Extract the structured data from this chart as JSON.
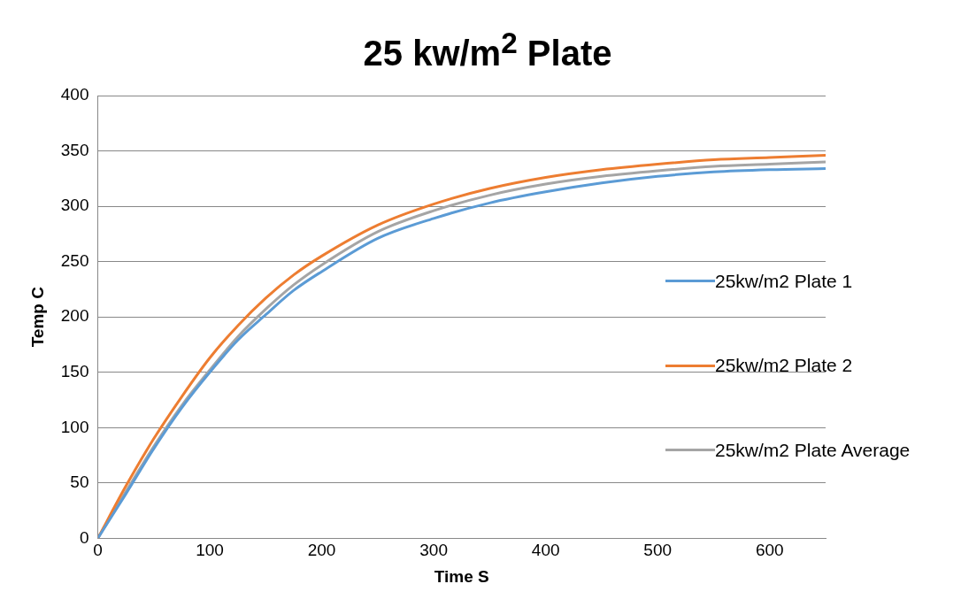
{
  "chart_data": {
    "type": "line",
    "title": "25 kw/m$^{2}$ Plate",
    "xlabel": "Time S",
    "ylabel": "Temp C",
    "xlim": [
      0,
      650
    ],
    "xticks": [
      0,
      100,
      200,
      300,
      400,
      500,
      600
    ],
    "ylim": [
      0,
      400
    ],
    "yticks": [
      0,
      50,
      100,
      150,
      200,
      250,
      300,
      350,
      400
    ],
    "grid": "y",
    "legend": "right",
    "marker": "none",
    "line_style": "solid",
    "x": [
      0,
      25,
      50,
      75,
      100,
      125,
      150,
      175,
      200,
      250,
      300,
      350,
      400,
      450,
      500,
      550,
      600,
      650
    ],
    "series": [
      {
        "name": "25kw/m2 Plate 1",
        "color": "#5b9bd5",
        "values": [
          0,
          40,
          81,
          118,
          150,
          179,
          202,
          224,
          241,
          271,
          289,
          303,
          313,
          321,
          327,
          331,
          333,
          334
        ]
      },
      {
        "name": "25kw/m2 Plate 2",
        "color": "#ed7d31",
        "values": [
          0,
          47,
          90,
          128,
          163,
          192,
          217,
          238,
          255,
          283,
          302,
          316,
          326,
          333,
          338,
          342,
          344,
          346
        ]
      },
      {
        "name": "25kw/m2 Plate Average",
        "color": "#a5a5a5",
        "values": [
          0,
          42,
          83,
          120,
          152,
          182,
          207,
          229,
          247,
          277,
          296,
          310,
          320,
          327,
          332,
          336,
          338,
          340
        ]
      }
    ]
  }
}
